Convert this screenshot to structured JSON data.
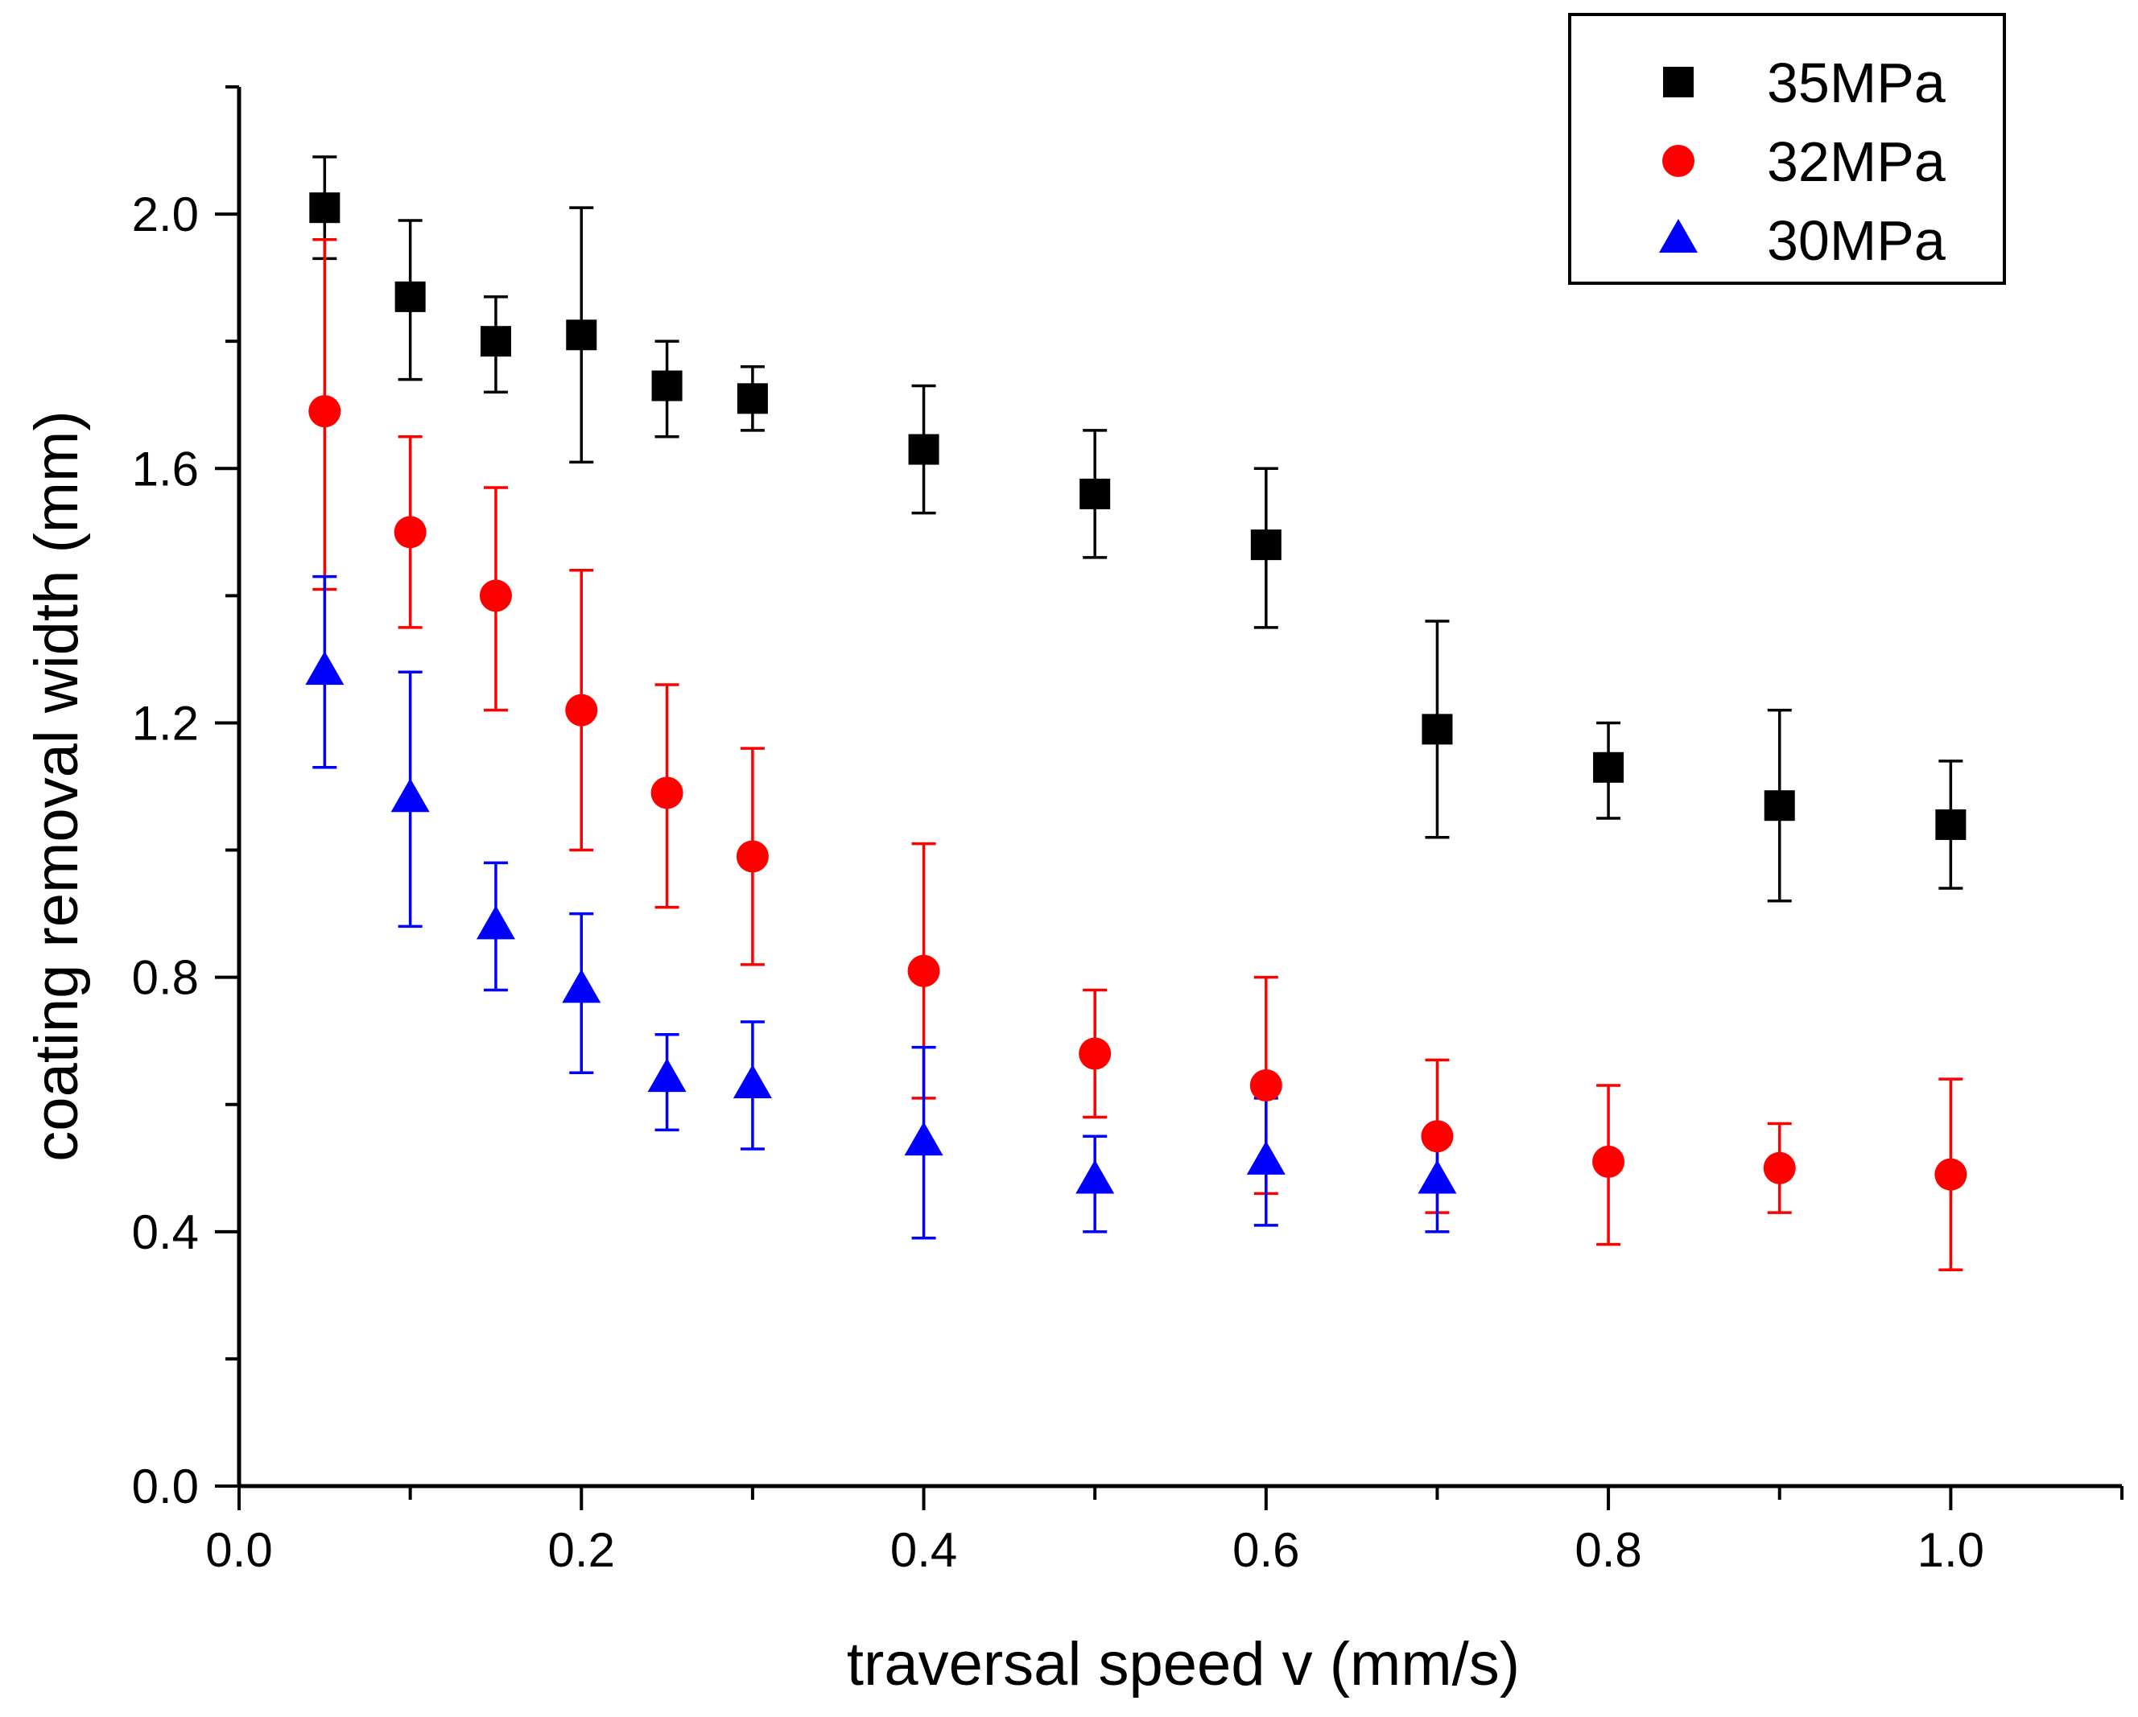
{
  "chart_data": {
    "type": "scatter",
    "title": "",
    "xlabel": "traversal speed v (mm/s)",
    "ylabel": "coating removal width (mm)",
    "xlim": [
      0.0,
      1.1
    ],
    "ylim": [
      0.0,
      2.2
    ],
    "xticks": [
      0.0,
      0.2,
      0.4,
      0.6,
      0.8,
      1.0
    ],
    "xtick_labels": [
      "0.0",
      "0.2",
      "0.4",
      "0.6",
      "0.8",
      "1.0"
    ],
    "yticks": [
      0.0,
      0.4,
      0.8,
      1.2,
      1.6,
      2.0
    ],
    "ytick_labels": [
      "0.0",
      "0.4",
      "0.8",
      "1.2",
      "1.6",
      "2.0"
    ],
    "grid": false,
    "legend_position": "top-right",
    "series": [
      {
        "name": "35MPa",
        "color": "#000000",
        "marker": "square",
        "x": [
          0.05,
          0.1,
          0.15,
          0.2,
          0.25,
          0.3,
          0.4,
          0.5,
          0.6,
          0.7,
          0.8,
          0.9,
          1.0
        ],
        "y": [
          2.01,
          1.87,
          1.8,
          1.81,
          1.73,
          1.71,
          1.63,
          1.56,
          1.48,
          1.19,
          1.13,
          1.07,
          1.04
        ],
        "err_low": [
          0.08,
          0.13,
          0.08,
          0.2,
          0.08,
          0.05,
          0.1,
          0.1,
          0.13,
          0.17,
          0.08,
          0.15,
          0.1
        ],
        "err_high": [
          0.08,
          0.12,
          0.07,
          0.2,
          0.07,
          0.05,
          0.1,
          0.1,
          0.12,
          0.17,
          0.07,
          0.15,
          0.1
        ]
      },
      {
        "name": "32MPa",
        "color": "#ff0000",
        "marker": "circle",
        "x": [
          0.05,
          0.1,
          0.15,
          0.2,
          0.25,
          0.3,
          0.4,
          0.5,
          0.6,
          0.7,
          0.8,
          0.9,
          1.0
        ],
        "y": [
          1.69,
          1.5,
          1.4,
          1.22,
          1.09,
          0.99,
          0.81,
          0.68,
          0.63,
          0.55,
          0.51,
          0.5,
          0.49
        ],
        "err_low": [
          0.28,
          0.15,
          0.18,
          0.22,
          0.18,
          0.17,
          0.2,
          0.1,
          0.17,
          0.12,
          0.13,
          0.07,
          0.15
        ],
        "err_high": [
          0.27,
          0.15,
          0.17,
          0.22,
          0.17,
          0.17,
          0.2,
          0.1,
          0.17,
          0.12,
          0.12,
          0.07,
          0.15
        ]
      },
      {
        "name": "30MPa",
        "color": "#0000ff",
        "marker": "triangle",
        "x": [
          0.05,
          0.1,
          0.15,
          0.2,
          0.25,
          0.3,
          0.4,
          0.5,
          0.6,
          0.7
        ],
        "y": [
          1.28,
          1.08,
          0.88,
          0.78,
          0.64,
          0.63,
          0.54,
          0.48,
          0.51,
          0.48
        ],
        "err_low": [
          0.15,
          0.2,
          0.1,
          0.13,
          0.08,
          0.1,
          0.15,
          0.08,
          0.1,
          0.08
        ],
        "err_high": [
          0.15,
          0.2,
          0.1,
          0.12,
          0.07,
          0.1,
          0.15,
          0.07,
          0.1,
          0.07
        ]
      }
    ]
  }
}
